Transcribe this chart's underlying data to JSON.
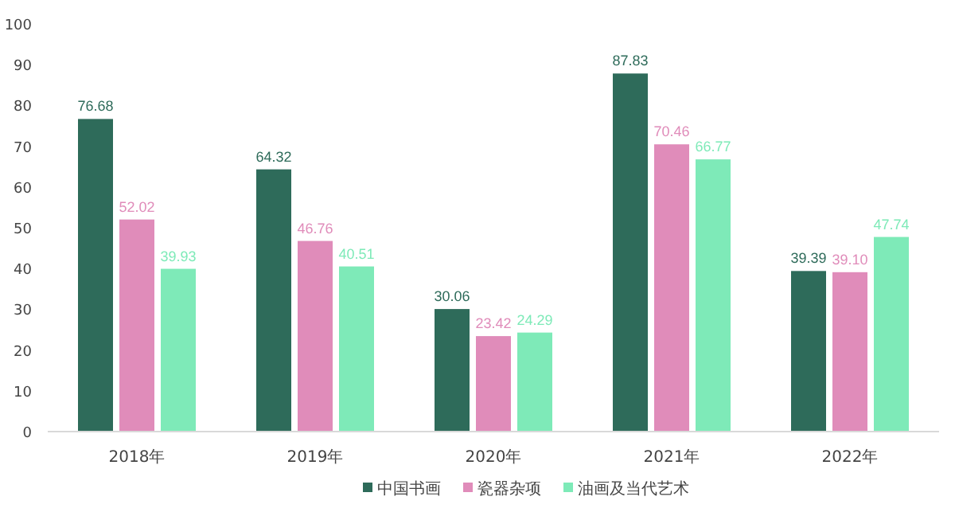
{
  "chart_data": {
    "type": "bar",
    "categories": [
      "2018年",
      "2019年",
      "2020年",
      "2021年",
      "2022年"
    ],
    "series": [
      {
        "name": "中国书画",
        "color": "#2e6b5a",
        "values": [
          76.68,
          64.32,
          30.06,
          87.83,
          39.39
        ]
      },
      {
        "name": "瓷器杂项",
        "color": "#e08cba",
        "values": [
          52.02,
          46.76,
          23.42,
          70.46,
          39.1
        ]
      },
      {
        "name": "油画及当代艺术",
        "color": "#7eeab8",
        "values": [
          39.93,
          40.51,
          24.29,
          66.77,
          47.74
        ]
      }
    ],
    "value_labels": [
      [
        "76.68",
        "64.32",
        "30.06",
        "87.83",
        "39.39"
      ],
      [
        "52.02",
        "46.76",
        "23.42",
        "70.46",
        "39.10"
      ],
      [
        "39.93",
        "40.51",
        "24.29",
        "66.77",
        "47.74"
      ]
    ],
    "ylim": [
      0,
      100
    ],
    "yticks": [
      0,
      10,
      20,
      30,
      40,
      50,
      60,
      70,
      80,
      90,
      100
    ],
    "grid": false,
    "legend": "bottom"
  }
}
